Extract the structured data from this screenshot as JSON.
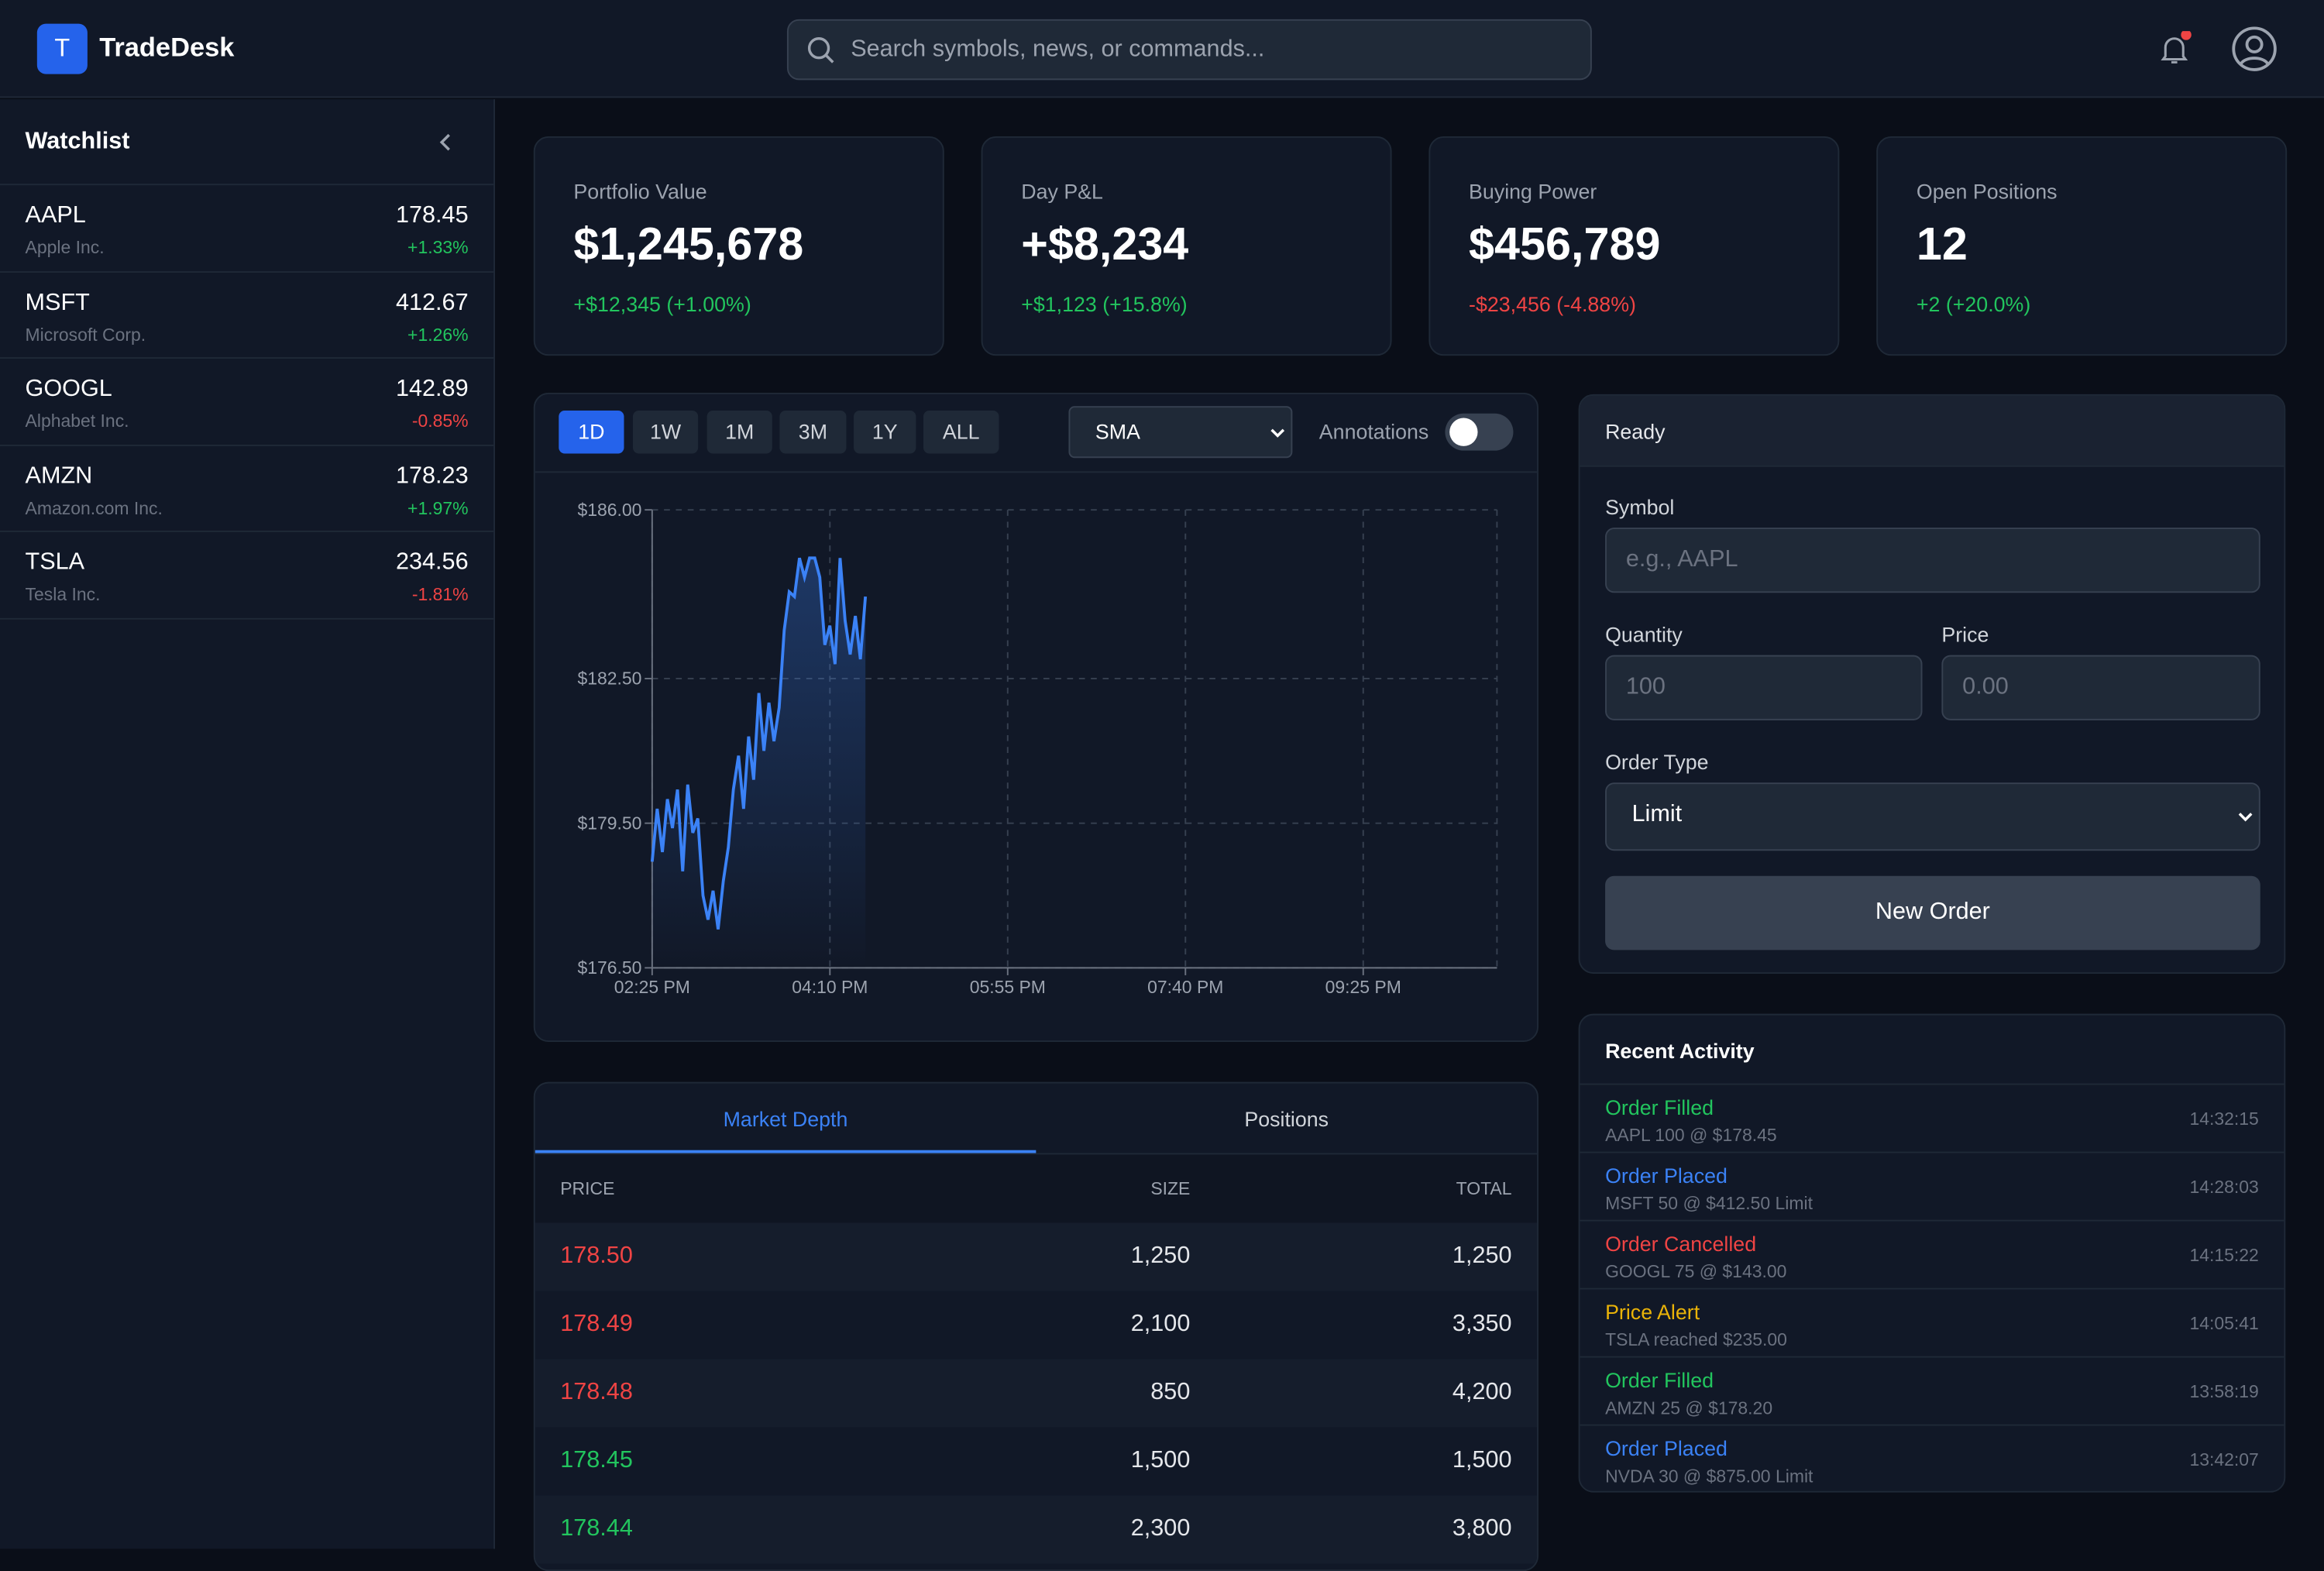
{
  "header": {
    "logo_letter": "T",
    "title": "TradeDesk",
    "search_placeholder": "Search symbols, news, or commands...",
    "notification_dot_color": "#ef4444"
  },
  "watchlist": {
    "title": "Watchlist",
    "items": [
      {
        "symbol": "AAPL",
        "name": "Apple Inc.",
        "price": "178.45",
        "change": "+1.33%",
        "dir": "pos"
      },
      {
        "symbol": "MSFT",
        "name": "Microsoft Corp.",
        "price": "412.67",
        "change": "+1.26%",
        "dir": "pos"
      },
      {
        "symbol": "GOOGL",
        "name": "Alphabet Inc.",
        "price": "142.89",
        "change": "-0.85%",
        "dir": "neg"
      },
      {
        "symbol": "AMZN",
        "name": "Amazon.com Inc.",
        "price": "178.23",
        "change": "+1.97%",
        "dir": "pos"
      },
      {
        "symbol": "TSLA",
        "name": "Tesla Inc.",
        "price": "234.56",
        "change": "-1.81%",
        "dir": "neg"
      }
    ]
  },
  "stats": [
    {
      "label": "Portfolio Value",
      "value": "$1,245,678",
      "change": "+$12,345 (+1.00%)",
      "dir": "pos"
    },
    {
      "label": "Day P&L",
      "value": "+$8,234",
      "change": "+$1,123 (+15.8%)",
      "dir": "pos"
    },
    {
      "label": "Buying Power",
      "value": "$456,789",
      "change": "-$23,456 (-4.88%)",
      "dir": "neg"
    },
    {
      "label": "Open Positions",
      "value": "12",
      "change": "+2 (+20.0%)",
      "dir": "pos"
    }
  ],
  "chart_controls": {
    "timeframes": [
      "1D",
      "1W",
      "1M",
      "3M",
      "1Y",
      "ALL"
    ],
    "active_timeframe": "1D",
    "indicator": "SMA",
    "annotations_label": "Annotations",
    "annotations_on": false
  },
  "chart_data": {
    "type": "area",
    "line_color": "#3b82f6",
    "x": [
      "14:25",
      "14:28",
      "14:31",
      "14:34",
      "14:37",
      "14:40",
      "14:43",
      "14:46",
      "14:49",
      "14:52",
      "14:55",
      "14:58",
      "15:01",
      "15:04",
      "15:07",
      "15:10",
      "15:13",
      "15:16",
      "15:19",
      "15:22",
      "15:25",
      "15:28",
      "15:31",
      "15:34",
      "15:37",
      "15:40",
      "15:43",
      "15:46",
      "15:49",
      "15:52",
      "15:55",
      "15:58",
      "16:01",
      "16:04",
      "16:07",
      "16:10",
      "16:13",
      "16:16",
      "16:19",
      "16:22",
      "16:25",
      "16:28",
      "16:31"
    ],
    "y": [
      178.7,
      179.8,
      178.9,
      180.0,
      179.4,
      180.2,
      178.5,
      180.3,
      179.3,
      179.6,
      178.0,
      177.5,
      178.1,
      177.3,
      178.3,
      179.0,
      180.2,
      180.9,
      179.8,
      181.3,
      180.4,
      182.2,
      181.0,
      182.0,
      181.2,
      181.9,
      183.5,
      184.3,
      184.2,
      185.0,
      184.6,
      185.0,
      185.0,
      184.6,
      183.2,
      183.6,
      182.8,
      185.0,
      183.7,
      183.0,
      183.8,
      182.9,
      184.2
    ],
    "xlim": [
      "14:25",
      "22:44"
    ],
    "ylim": [
      176.5,
      186.0
    ],
    "x_ticks": [
      {
        "t": "14:25",
        "label": "02:25 PM"
      },
      {
        "t": "16:10",
        "label": "04:10 PM"
      },
      {
        "t": "17:55",
        "label": "05:55 PM"
      },
      {
        "t": "19:40",
        "label": "07:40 PM"
      },
      {
        "t": "21:25",
        "label": "09:25 PM"
      }
    ],
    "y_ticks": [
      {
        "v": 186.0,
        "label": "$186.00"
      },
      {
        "v": 182.5,
        "label": "$182.50"
      },
      {
        "v": 179.5,
        "label": "$179.50"
      },
      {
        "v": 176.5,
        "label": "$176.50"
      }
    ],
    "grid": true
  },
  "depth": {
    "tabs": [
      "Market Depth",
      "Positions"
    ],
    "active_tab": "Market Depth",
    "columns": [
      "PRICE",
      "SIZE",
      "TOTAL"
    ],
    "rows": [
      {
        "price": "178.50",
        "size": "1,250",
        "total": "1,250",
        "side": "neg"
      },
      {
        "price": "178.49",
        "size": "2,100",
        "total": "3,350",
        "side": "neg"
      },
      {
        "price": "178.48",
        "size": "850",
        "total": "4,200",
        "side": "neg"
      },
      {
        "price": "178.45",
        "size": "1,500",
        "total": "1,500",
        "side": "pos"
      },
      {
        "price": "178.44",
        "size": "2,300",
        "total": "3,800",
        "side": "pos"
      }
    ]
  },
  "order": {
    "status": "Ready",
    "symbol_label": "Symbol",
    "symbol_placeholder": "e.g., AAPL",
    "quantity_label": "Quantity",
    "quantity_value": "100",
    "price_label": "Price",
    "price_placeholder": "0.00",
    "type_label": "Order Type",
    "type_value": "Limit",
    "submit": "New Order"
  },
  "activity": {
    "title": "Recent Activity",
    "items": [
      {
        "title": "Order Filled",
        "detail": "AAPL 100 @ $178.45",
        "time": "14:32:15",
        "color": "#22c55e"
      },
      {
        "title": "Order Placed",
        "detail": "MSFT 50 @ $412.50 Limit",
        "time": "14:28:03",
        "color": "#3b82f6"
      },
      {
        "title": "Order Cancelled",
        "detail": "GOOGL 75 @ $143.00",
        "time": "14:15:22",
        "color": "#ef4444"
      },
      {
        "title": "Price Alert",
        "detail": "TSLA reached $235.00",
        "time": "14:05:41",
        "color": "#eab308"
      },
      {
        "title": "Order Filled",
        "detail": "AMZN 25 @ $178.20",
        "time": "13:58:19",
        "color": "#22c55e"
      },
      {
        "title": "Order Placed",
        "detail": "NVDA 30 @ $875.00 Limit",
        "time": "13:42:07",
        "color": "#3b82f6"
      }
    ]
  }
}
